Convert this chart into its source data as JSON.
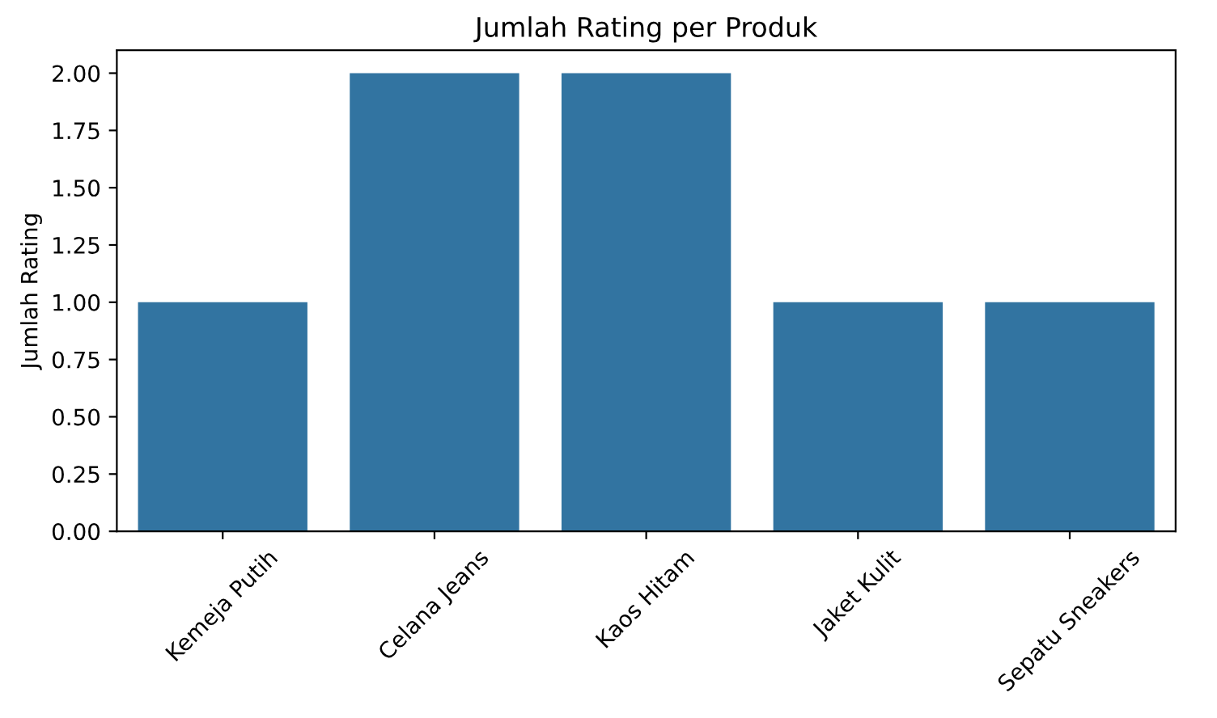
{
  "chart_data": {
    "type": "bar",
    "title": "Jumlah Rating per Produk",
    "ylabel": "Jumlah Rating",
    "categories": [
      "Kemeja Putih",
      "Celana Jeans",
      "Kaos Hitam",
      "Jaket Kulit",
      "Sepatu Sneakers"
    ],
    "values": [
      1,
      2,
      2,
      1,
      1
    ],
    "color": "#3274a1",
    "ylim": [
      0,
      2.1
    ],
    "yticks": [
      {
        "value": 0,
        "label": "0.00"
      },
      {
        "value": 0.25,
        "label": "0.25"
      },
      {
        "value": 0.5,
        "label": "0.50"
      },
      {
        "value": 0.75,
        "label": "0.75"
      },
      {
        "value": 1,
        "label": "1.00"
      },
      {
        "value": 1.25,
        "label": "1.25"
      },
      {
        "value": 1.5,
        "label": "1.50"
      },
      {
        "value": 1.75,
        "label": "1.75"
      },
      {
        "value": 2,
        "label": "2.00"
      }
    ],
    "grid": false
  }
}
